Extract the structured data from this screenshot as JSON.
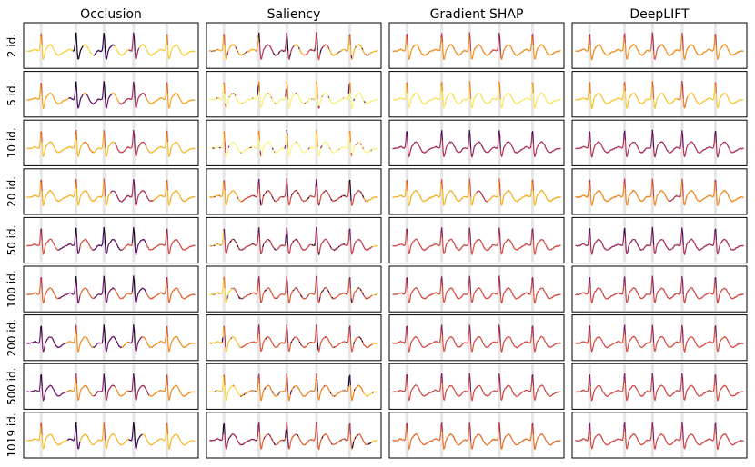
{
  "chart_data": {
    "type": "line",
    "title": "",
    "signal_description": "ECG trace with 5 R-peaks per panel, line coloured by attribution intensity (inferno colormap)",
    "colormap": {
      "name": "inferno",
      "stops": [
        "#fcffa4",
        "#f8d941",
        "#f5a623",
        "#ec8125",
        "#dd5a3d",
        "#c44053",
        "#a42f5d",
        "#7a1f6c",
        "#4d1168",
        "#2a0b45",
        "#0d0416"
      ]
    },
    "r_peak_positions": [
      0.1,
      0.3,
      0.46,
      0.63,
      0.82
    ],
    "columns": [
      "Occlusion",
      "Saliency",
      "Gradient SHAP",
      "DeepLIFT"
    ],
    "rows": [
      "2 id.",
      "5 id.",
      "10 id.",
      "20 id.",
      "50 id.",
      "100 id.",
      "200 id.",
      "500 id.",
      "1019 id."
    ],
    "panels": [
      [
        {
          "method": "Occlusion",
          "base": 0.12,
          "hot": [
            [
              0.28,
              0.34,
              0.95
            ],
            [
              0.4,
              0.52,
              0.85
            ],
            [
              0.6,
              0.66,
              0.6
            ]
          ],
          "mode": "smooth"
        },
        {
          "method": "Saliency",
          "base": 0.18,
          "hot": [
            [
              0.3,
              0.5,
              0.55
            ],
            [
              0.55,
              0.7,
              0.45
            ]
          ],
          "mode": "speckle"
        },
        {
          "method": "Gradient SHAP",
          "base": 0.26,
          "hot": [
            [
              0.58,
              0.64,
              0.45
            ]
          ],
          "mode": "smooth"
        },
        {
          "method": "DeepLIFT",
          "base": 0.26,
          "hot": [
            [
              0.45,
              0.5,
              0.4
            ]
          ],
          "mode": "smooth"
        }
      ],
      [
        {
          "method": "Occlusion",
          "base": 0.2,
          "hot": [
            [
              0.26,
              0.34,
              0.8
            ],
            [
              0.36,
              0.5,
              0.75
            ],
            [
              0.55,
              0.7,
              0.55
            ]
          ],
          "mode": "smooth"
        },
        {
          "method": "Saliency",
          "base": 0.04,
          "hot": [],
          "mode": "speckle"
        },
        {
          "method": "Gradient SHAP",
          "base": 0.07,
          "hot": [],
          "mode": "smooth"
        },
        {
          "method": "DeepLIFT",
          "base": 0.14,
          "hot": [
            [
              0.6,
              0.66,
              0.3
            ]
          ],
          "mode": "smooth"
        }
      ],
      [
        {
          "method": "Occlusion",
          "base": 0.16,
          "hot": [
            [
              0.34,
              0.4,
              0.32
            ],
            [
              0.52,
              0.7,
              0.5
            ]
          ],
          "mode": "smooth"
        },
        {
          "method": "Saliency",
          "base": 0.03,
          "hot": [],
          "mode": "speckle"
        },
        {
          "method": "Gradient SHAP",
          "base": 0.58,
          "hot": [
            [
              0.45,
              0.55,
              0.62
            ]
          ],
          "mode": "smooth"
        },
        {
          "method": "DeepLIFT",
          "base": 0.56,
          "hot": [
            [
              0.4,
              0.55,
              0.62
            ]
          ],
          "mode": "smooth"
        }
      ],
      [
        {
          "method": "Occlusion",
          "base": 0.18,
          "hot": [
            [
              0.5,
              0.62,
              0.6
            ],
            [
              0.62,
              0.74,
              0.55
            ]
          ],
          "mode": "smooth"
        },
        {
          "method": "Saliency",
          "base": 0.18,
          "hot": [
            [
              0.2,
              0.9,
              0.45
            ]
          ],
          "mode": "speckle"
        },
        {
          "method": "Gradient SHAP",
          "base": 0.18,
          "hot": [
            [
              0.5,
              0.56,
              0.55
            ]
          ],
          "mode": "smooth"
        },
        {
          "method": "DeepLIFT",
          "base": 0.28,
          "hot": [
            [
              0.55,
              0.62,
              0.55
            ]
          ],
          "mode": "smooth"
        }
      ],
      [
        {
          "method": "Occlusion",
          "base": 0.44,
          "hot": [
            [
              0.2,
              0.32,
              0.72
            ],
            [
              0.4,
              0.56,
              0.78
            ],
            [
              0.62,
              0.7,
              0.75
            ]
          ],
          "mode": "smooth"
        },
        {
          "method": "Saliency",
          "base": 0.14,
          "hot": [
            [
              0.1,
              0.95,
              0.5
            ]
          ],
          "mode": "speckle"
        },
        {
          "method": "Gradient SHAP",
          "base": 0.45,
          "hot": [],
          "mode": "smooth"
        },
        {
          "method": "DeepLIFT",
          "base": 0.58,
          "hot": [
            [
              0.2,
              0.4,
              0.64
            ]
          ],
          "mode": "smooth"
        }
      ],
      [
        {
          "method": "Occlusion",
          "base": 0.36,
          "hot": [
            [
              0.2,
              0.32,
              0.7
            ],
            [
              0.4,
              0.52,
              0.7
            ],
            [
              0.62,
              0.7,
              0.78
            ]
          ],
          "mode": "smooth"
        },
        {
          "method": "Saliency",
          "base": 0.1,
          "hot": [
            [
              0.15,
              0.95,
              0.4
            ]
          ],
          "mode": "speckle"
        },
        {
          "method": "Gradient SHAP",
          "base": 0.44,
          "hot": [],
          "mode": "smooth"
        },
        {
          "method": "DeepLIFT",
          "base": 0.46,
          "hot": [],
          "mode": "smooth"
        }
      ],
      [
        {
          "method": "Occlusion",
          "base": 0.26,
          "hot": [
            [
              0.0,
              0.24,
              0.72
            ],
            [
              0.4,
              0.56,
              0.75
            ],
            [
              0.6,
              0.68,
              0.7
            ]
          ],
          "mode": "smooth"
        },
        {
          "method": "Saliency",
          "base": 0.14,
          "hot": [
            [
              0.2,
              0.95,
              0.4
            ]
          ],
          "mode": "speckle"
        },
        {
          "method": "Gradient SHAP",
          "base": 0.44,
          "hot": [],
          "mode": "smooth"
        },
        {
          "method": "DeepLIFT",
          "base": 0.44,
          "hot": [],
          "mode": "smooth"
        }
      ],
      [
        {
          "method": "Occlusion",
          "base": 0.26,
          "hot": [
            [
              0.0,
              0.24,
              0.7
            ],
            [
              0.4,
              0.52,
              0.62
            ],
            [
              0.6,
              0.72,
              0.6
            ]
          ],
          "mode": "smooth"
        },
        {
          "method": "Saliency",
          "base": 0.1,
          "hot": [
            [
              0.2,
              0.9,
              0.28
            ]
          ],
          "mode": "speckle"
        },
        {
          "method": "Gradient SHAP",
          "base": 0.45,
          "hot": [],
          "mode": "smooth"
        },
        {
          "method": "DeepLIFT",
          "base": 0.45,
          "hot": [],
          "mode": "smooth"
        }
      ],
      [
        {
          "method": "Occlusion",
          "base": 0.16,
          "hot": [
            [
              0.25,
              0.32,
              0.78
            ],
            [
              0.6,
              0.68,
              0.85
            ]
          ],
          "mode": "smooth"
        },
        {
          "method": "Saliency",
          "base": 0.12,
          "hot": [
            [
              0.0,
              0.3,
              0.6
            ],
            [
              0.3,
              0.95,
              0.38
            ]
          ],
          "mode": "speckle"
        },
        {
          "method": "Gradient SHAP",
          "base": 0.34,
          "hot": [],
          "mode": "smooth"
        },
        {
          "method": "DeepLIFT",
          "base": 0.46,
          "hot": [],
          "mode": "smooth"
        }
      ]
    ]
  }
}
